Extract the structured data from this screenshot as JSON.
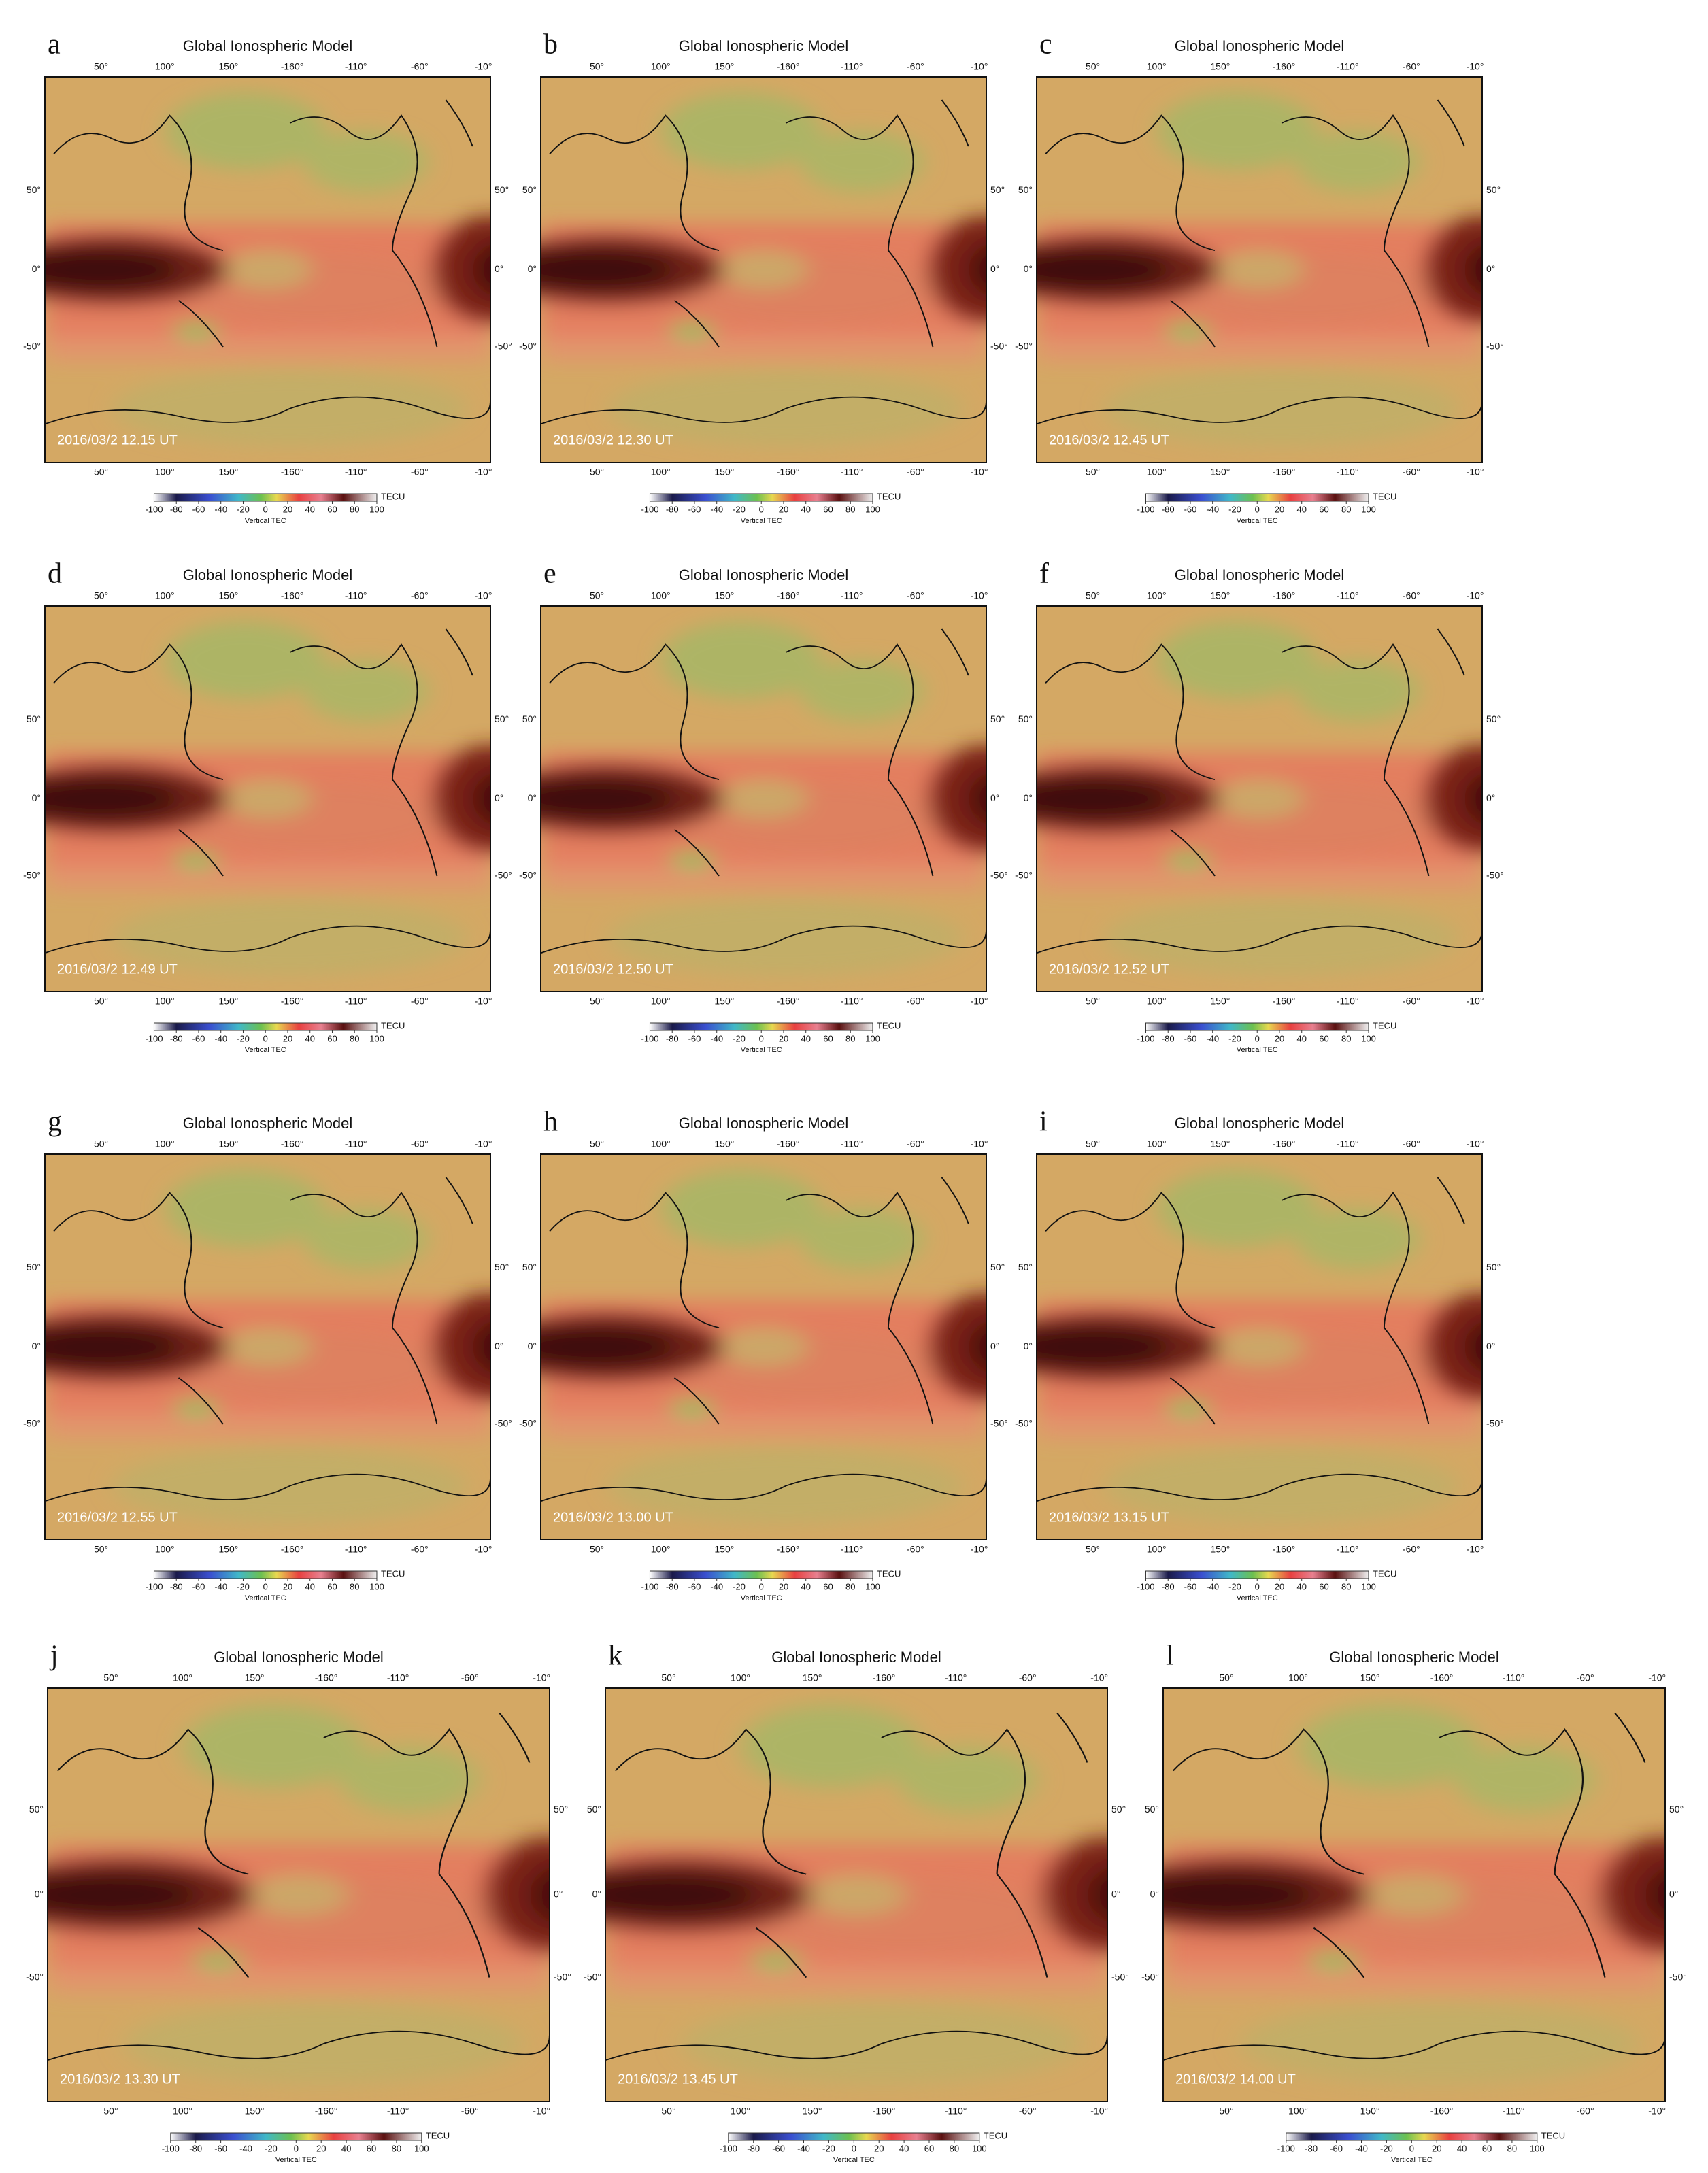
{
  "figure": {
    "map_title": "Global Ionospheric Model",
    "lon_labels": [
      "50°",
      "100°",
      "150°",
      "-160°",
      "-110°",
      "-60°",
      "-10°"
    ],
    "lat_labels": [
      "50°",
      "0°",
      "-50°"
    ],
    "colorbar": {
      "ticks": [
        -100,
        -80,
        -60,
        -40,
        -20,
        0,
        20,
        40,
        60,
        80,
        100
      ],
      "unit": "TECU",
      "label": "Vertical TEC"
    }
  },
  "panels": [
    {
      "letter": "a",
      "time": "2016/03/2 12.15 UT"
    },
    {
      "letter": "b",
      "time": "2016/03/2 12.30 UT"
    },
    {
      "letter": "c",
      "time": "2016/03/2 12.45 UT"
    },
    {
      "letter": "d",
      "time": "2016/03/2 12.49 UT"
    },
    {
      "letter": "e",
      "time": "2016/03/2 12.50 UT"
    },
    {
      "letter": "f",
      "time": "2016/03/2 12.52 UT"
    },
    {
      "letter": "g",
      "time": "2016/03/2 12.55 UT"
    },
    {
      "letter": "h",
      "time": "2016/03/2 13.00 UT"
    },
    {
      "letter": "i",
      "time": "2016/03/2 13.15 UT"
    },
    {
      "letter": "j",
      "time": "2016/03/2 13.30 UT"
    },
    {
      "letter": "k",
      "time": "2016/03/2 13.45 UT"
    },
    {
      "letter": "l",
      "time": "2016/03/2 14.00 UT"
    }
  ]
}
